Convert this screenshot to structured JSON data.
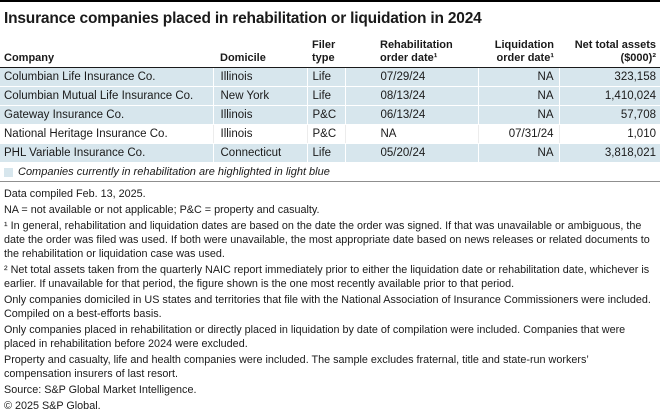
{
  "title": "Insurance companies placed in rehabilitation or liquidation in 2024",
  "chart_data": {
    "type": "table",
    "title": "Insurance companies placed in rehabilitation or liquidation in 2024",
    "columns": [
      "Company",
      "Domicile",
      "Filer type",
      "Rehabilitation order date¹",
      "Liquidation order date¹",
      "Net total assets ($000)²"
    ],
    "rows": [
      [
        "Columbian Life Insurance Co.",
        "Illinois",
        "Life",
        "07/29/24",
        "NA",
        "323,158"
      ],
      [
        "Columbian Mutual Life Insurance Co.",
        "New York",
        "Life",
        "08/13/24",
        "NA",
        "1,410,024"
      ],
      [
        "Gateway Insurance Co.",
        "Illinois",
        "P&C",
        "06/13/24",
        "NA",
        "57,708"
      ],
      [
        "National Heritage Insurance Co.",
        "Illinois",
        "P&C",
        "NA",
        "07/31/24",
        "1,010"
      ],
      [
        "PHL Variable Insurance Co.",
        "Connecticut",
        "Life",
        "05/20/24",
        "NA",
        "3,818,021"
      ]
    ],
    "highlighted_rows": [
      0,
      1,
      2,
      4
    ],
    "highlight_meaning": "Companies currently in rehabilitation are highlighted in light blue"
  },
  "legend": {
    "swatch": "light-blue-square",
    "text": "Companies currently in rehabilitation are highlighted in light blue"
  },
  "footnotes": [
    "Data compiled Feb. 13, 2025.",
    "NA = not available or not applicable; P&C = property and casualty.",
    "¹ In general, rehabilitation and liquidation dates are based on the date the order was signed. If that was unavailable or ambiguous, the date the order was filed was used. If both were unavailable, the most appropriate date based on news releases or related documents to the rehabilitation or liquidation case was used.",
    "² Net total assets taken from the quarterly NAIC report immediately prior to either the liquidation date or rehabilitation date, whichever is earlier. If unavailable for that period, the figure shown is the one most recently available prior to that period.",
    "Only companies domiciled in US states and territories that file with the National Association of Insurance Commissioners were included. Compiled on a best-efforts basis.",
    "Only companies placed in rehabilitation or directly placed in liquidation by date of compilation were included. Companies that were placed in rehabilitation before 2024 were excluded.",
    "Property and casualty, life and health companies were included. The sample excludes fraternal, title and state-run workers’ compensation insurers of last resort."
  ],
  "source_line": "Source: S&P Global Market Intelligence.",
  "copyright_line": "© 2025 S&P Global.",
  "colors": {
    "highlight": "#d7e6ed",
    "rule-top": "#000000",
    "rule-header": "#1a1a1a",
    "rule-bottom": "#8f8f8f",
    "text": "#1a1a1a"
  }
}
